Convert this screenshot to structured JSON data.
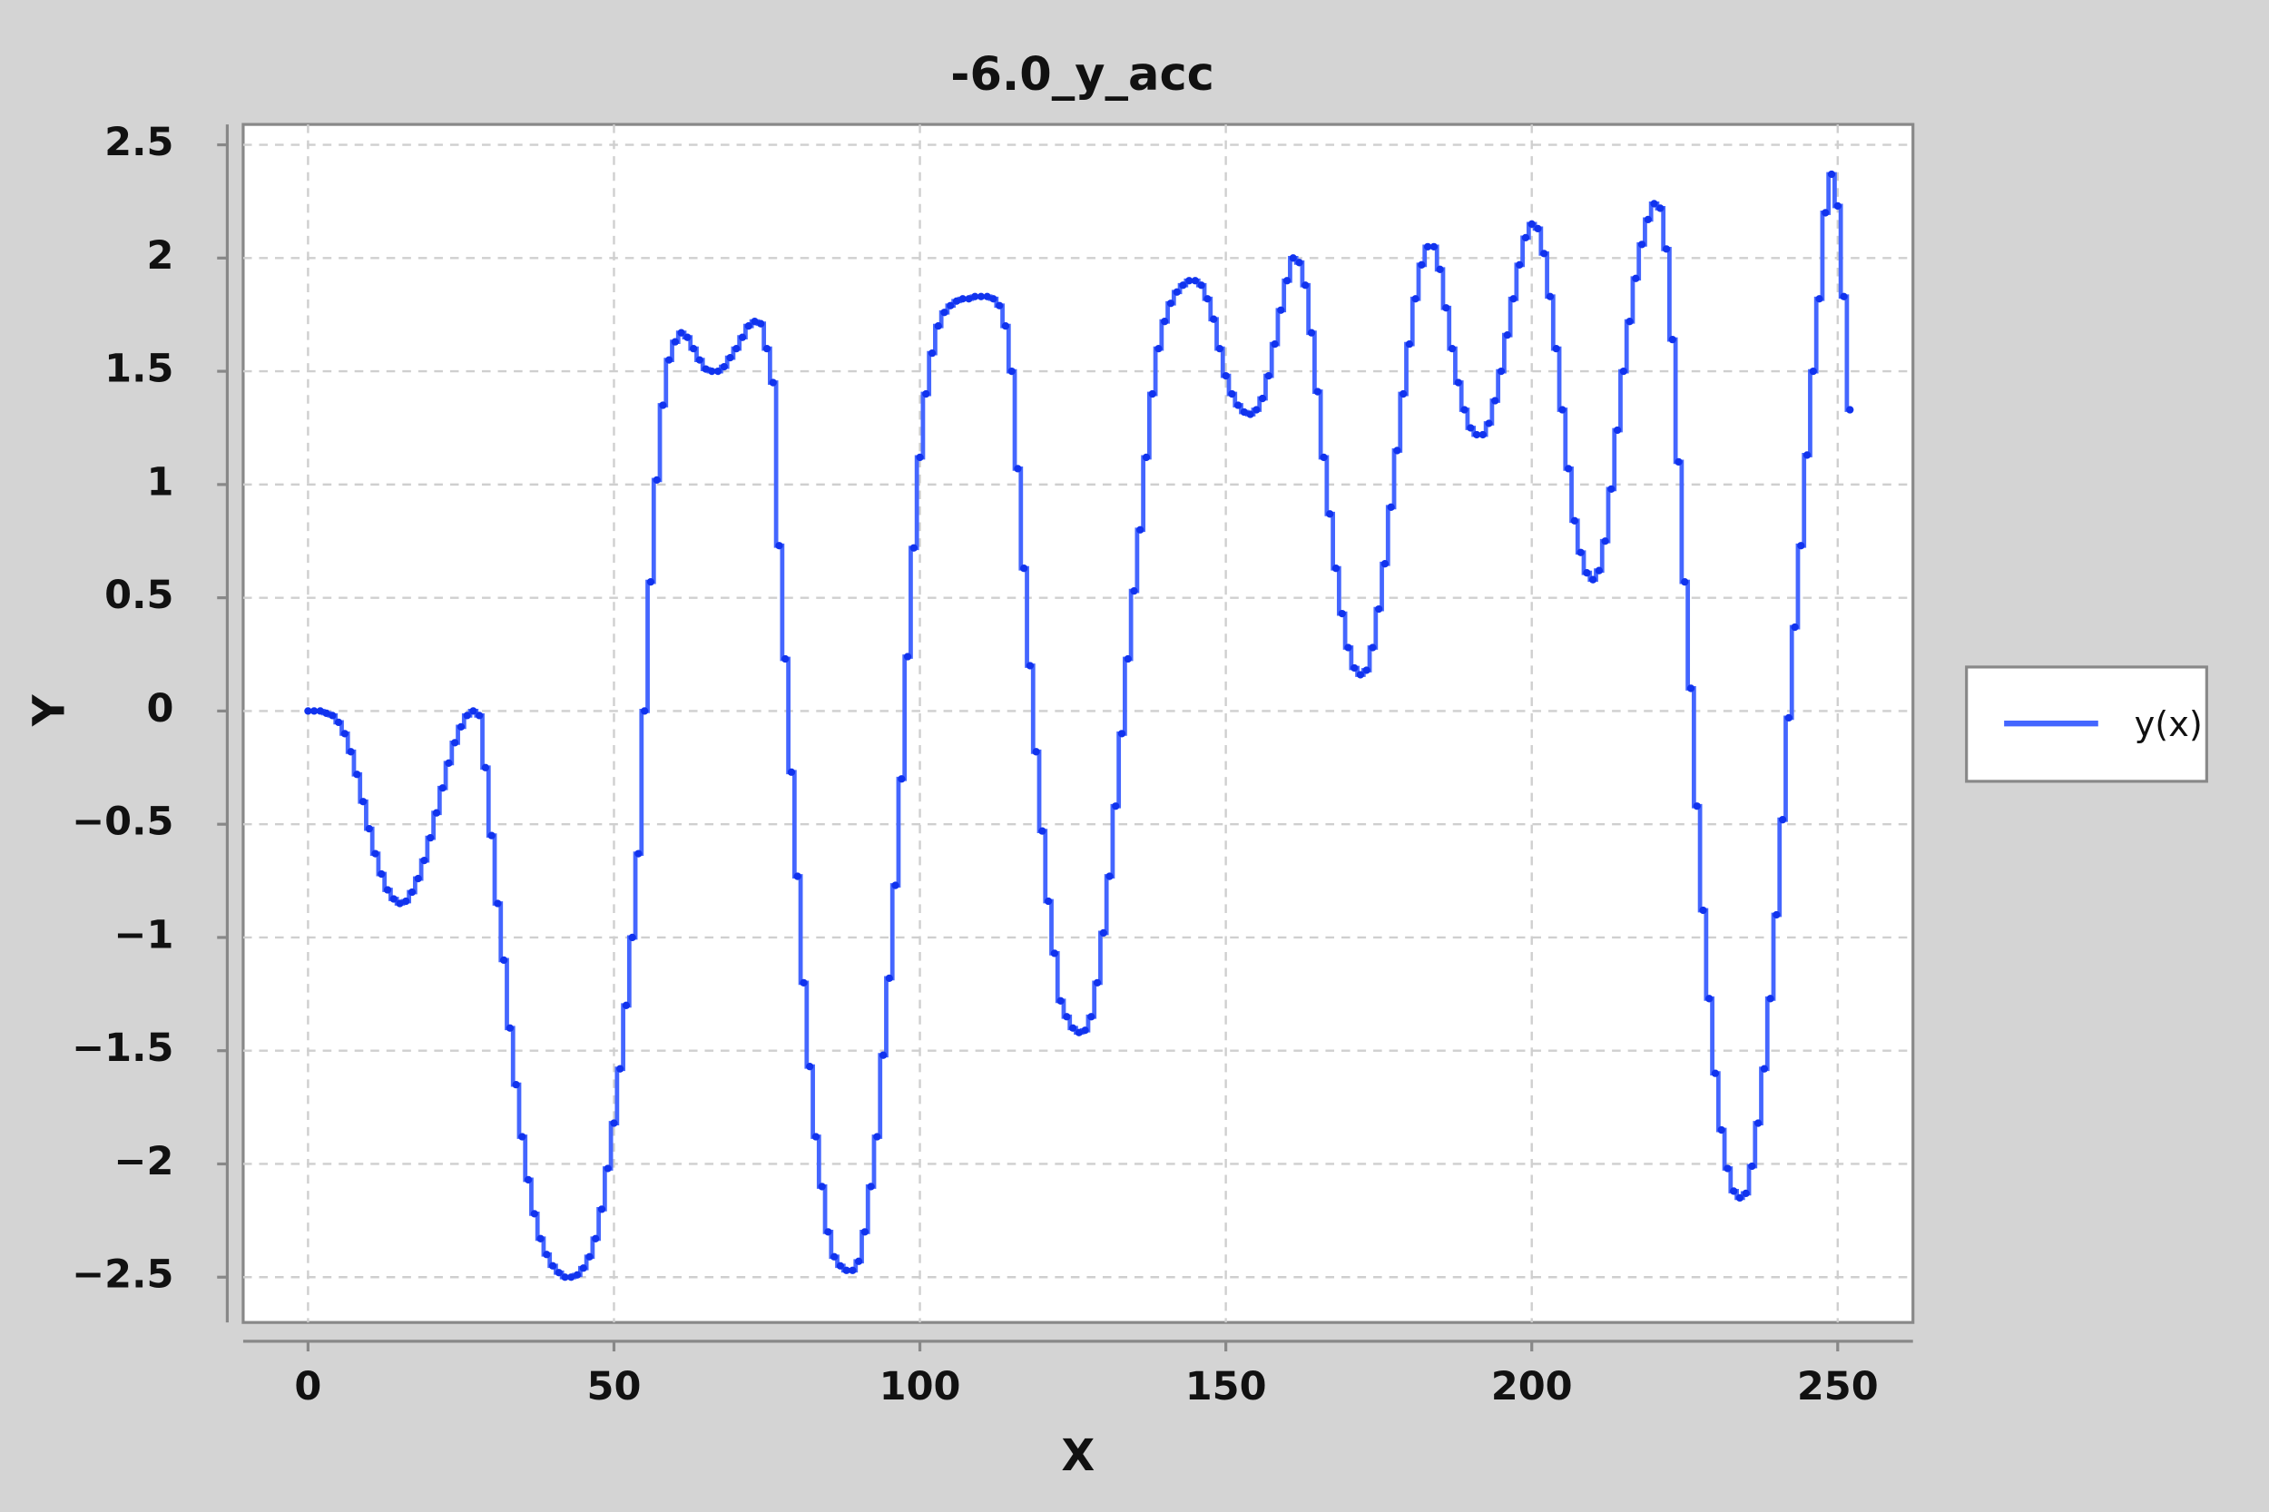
{
  "chart_data": {
    "type": "line",
    "title": "-6.0_y_acc",
    "xlabel": "X",
    "ylabel": "Y",
    "step": true,
    "markers": true,
    "grid": true,
    "legend": "right",
    "xlim": [
      -10.6,
      262.3
    ],
    "ylim": [
      -2.7,
      2.59
    ],
    "xticks": [
      0,
      50,
      100,
      150,
      200,
      250
    ],
    "yticks": [
      {
        "value": -2.5,
        "label": "−2.5"
      },
      {
        "value": -2,
        "label": "−2"
      },
      {
        "value": -1.5,
        "label": "−1.5"
      },
      {
        "value": -1,
        "label": "−1"
      },
      {
        "value": -0.5,
        "label": "−0.5"
      },
      0,
      0.5,
      1,
      1.5,
      2,
      2.5
    ],
    "x": [
      0,
      1,
      2,
      3,
      4,
      5,
      6,
      7,
      8,
      9,
      10,
      11,
      12,
      13,
      14,
      15,
      16,
      17,
      18,
      19,
      20,
      21,
      22,
      23,
      24,
      25,
      26,
      27,
      28,
      29,
      30,
      31,
      32,
      33,
      34,
      35,
      36,
      37,
      38,
      39,
      40,
      41,
      42,
      43,
      44,
      45,
      46,
      47,
      48,
      49,
      50,
      51,
      52,
      53,
      54,
      55,
      56,
      57,
      58,
      59,
      60,
      61,
      62,
      63,
      64,
      65,
      66,
      67,
      68,
      69,
      70,
      71,
      72,
      73,
      74,
      75,
      76,
      77,
      78,
      79,
      80,
      81,
      82,
      83,
      84,
      85,
      86,
      87,
      88,
      89,
      90,
      91,
      92,
      93,
      94,
      95,
      96,
      97,
      98,
      99,
      100,
      101,
      102,
      103,
      104,
      105,
      106,
      107,
      108,
      109,
      110,
      111,
      112,
      113,
      114,
      115,
      116,
      117,
      118,
      119,
      120,
      121,
      122,
      123,
      124,
      125,
      126,
      127,
      128,
      129,
      130,
      131,
      132,
      133,
      134,
      135,
      136,
      137,
      138,
      139,
      140,
      141,
      142,
      143,
      144,
      145,
      146,
      147,
      148,
      149,
      150,
      151,
      152,
      153,
      154,
      155,
      156,
      157,
      158,
      159,
      160,
      161,
      162,
      163,
      164,
      165,
      166,
      167,
      168,
      169,
      170,
      171,
      172,
      173,
      174,
      175,
      176,
      177,
      178,
      179,
      180,
      181,
      182,
      183,
      184,
      185,
      186,
      187,
      188,
      189,
      190,
      191,
      192,
      193,
      194,
      195,
      196,
      197,
      198,
      199,
      200,
      201,
      202,
      203,
      204,
      205,
      206,
      207,
      208,
      209,
      210,
      211,
      212,
      213,
      214,
      215,
      216,
      217,
      218,
      219,
      220,
      221,
      222,
      223,
      224,
      225,
      226,
      227,
      228,
      229,
      230,
      231,
      232,
      233,
      234,
      235,
      236,
      237,
      238,
      239,
      240,
      241,
      242,
      243,
      244,
      245,
      246,
      247,
      248,
      249,
      250,
      251,
      252
    ],
    "series": [
      {
        "name": "y(x)",
        "color": "#4466ff",
        "marker_color": "#1133ee",
        "values": [
          0,
          0,
          0,
          -0.01,
          -0.02,
          -0.05,
          -0.1,
          -0.18,
          -0.28,
          -0.4,
          -0.52,
          -0.63,
          -0.72,
          -0.79,
          -0.83,
          -0.85,
          -0.84,
          -0.8,
          -0.74,
          -0.66,
          -0.56,
          -0.45,
          -0.34,
          -0.23,
          -0.14,
          -0.07,
          -0.02,
          0,
          -0.02,
          -0.25,
          -0.55,
          -0.85,
          -1.1,
          -1.4,
          -1.65,
          -1.88,
          -2.07,
          -2.22,
          -2.33,
          -2.4,
          -2.45,
          -2.48,
          -2.5,
          -2.5,
          -2.49,
          -2.46,
          -2.41,
          -2.33,
          -2.2,
          -2.02,
          -1.82,
          -1.58,
          -1.3,
          -1.0,
          -0.63,
          0,
          0.57,
          1.02,
          1.35,
          1.55,
          1.63,
          1.67,
          1.65,
          1.6,
          1.55,
          1.51,
          1.5,
          1.5,
          1.52,
          1.56,
          1.6,
          1.65,
          1.7,
          1.72,
          1.71,
          1.6,
          1.45,
          0.73,
          0.23,
          -0.27,
          -0.73,
          -1.2,
          -1.57,
          -1.88,
          -2.1,
          -2.3,
          -2.41,
          -2.45,
          -2.47,
          -2.47,
          -2.43,
          -2.3,
          -2.1,
          -1.88,
          -1.52,
          -1.18,
          -0.77,
          -0.3,
          0.24,
          0.72,
          1.12,
          1.4,
          1.58,
          1.7,
          1.76,
          1.79,
          1.81,
          1.82,
          1.82,
          1.83,
          1.83,
          1.83,
          1.82,
          1.79,
          1.7,
          1.5,
          1.07,
          0.63,
          0.2,
          -0.18,
          -0.53,
          -0.84,
          -1.07,
          -1.28,
          -1.35,
          -1.4,
          -1.42,
          -1.41,
          -1.35,
          -1.2,
          -0.98,
          -0.73,
          -0.42,
          -0.1,
          0.23,
          0.53,
          0.8,
          1.12,
          1.4,
          1.6,
          1.72,
          1.8,
          1.85,
          1.88,
          1.9,
          1.9,
          1.88,
          1.82,
          1.73,
          1.6,
          1.48,
          1.4,
          1.35,
          1.32,
          1.31,
          1.33,
          1.38,
          1.48,
          1.62,
          1.77,
          1.9,
          2.0,
          1.98,
          1.88,
          1.67,
          1.41,
          1.12,
          0.87,
          0.63,
          0.43,
          0.28,
          0.19,
          0.16,
          0.18,
          0.28,
          0.45,
          0.65,
          0.9,
          1.15,
          1.4,
          1.62,
          1.82,
          1.97,
          2.05,
          2.05,
          1.95,
          1.78,
          1.6,
          1.45,
          1.33,
          1.25,
          1.22,
          1.22,
          1.27,
          1.37,
          1.5,
          1.66,
          1.82,
          1.97,
          2.09,
          2.15,
          2.13,
          2.02,
          1.83,
          1.6,
          1.33,
          1.07,
          0.84,
          0.7,
          0.61,
          0.58,
          0.62,
          0.75,
          0.98,
          1.24,
          1.5,
          1.72,
          1.91,
          2.06,
          2.17,
          2.24,
          2.22,
          2.04,
          1.64,
          1.1,
          0.57,
          0.1,
          -0.42,
          -0.88,
          -1.27,
          -1.6,
          -1.85,
          -2.02,
          -2.12,
          -2.15,
          -2.13,
          -2.01,
          -1.82,
          -1.58,
          -1.27,
          -0.9,
          -0.48,
          -0.03,
          0.37,
          0.73,
          1.13,
          1.5,
          1.82,
          2.2,
          2.37,
          2.23,
          1.83,
          1.33
        ]
      }
    ]
  }
}
